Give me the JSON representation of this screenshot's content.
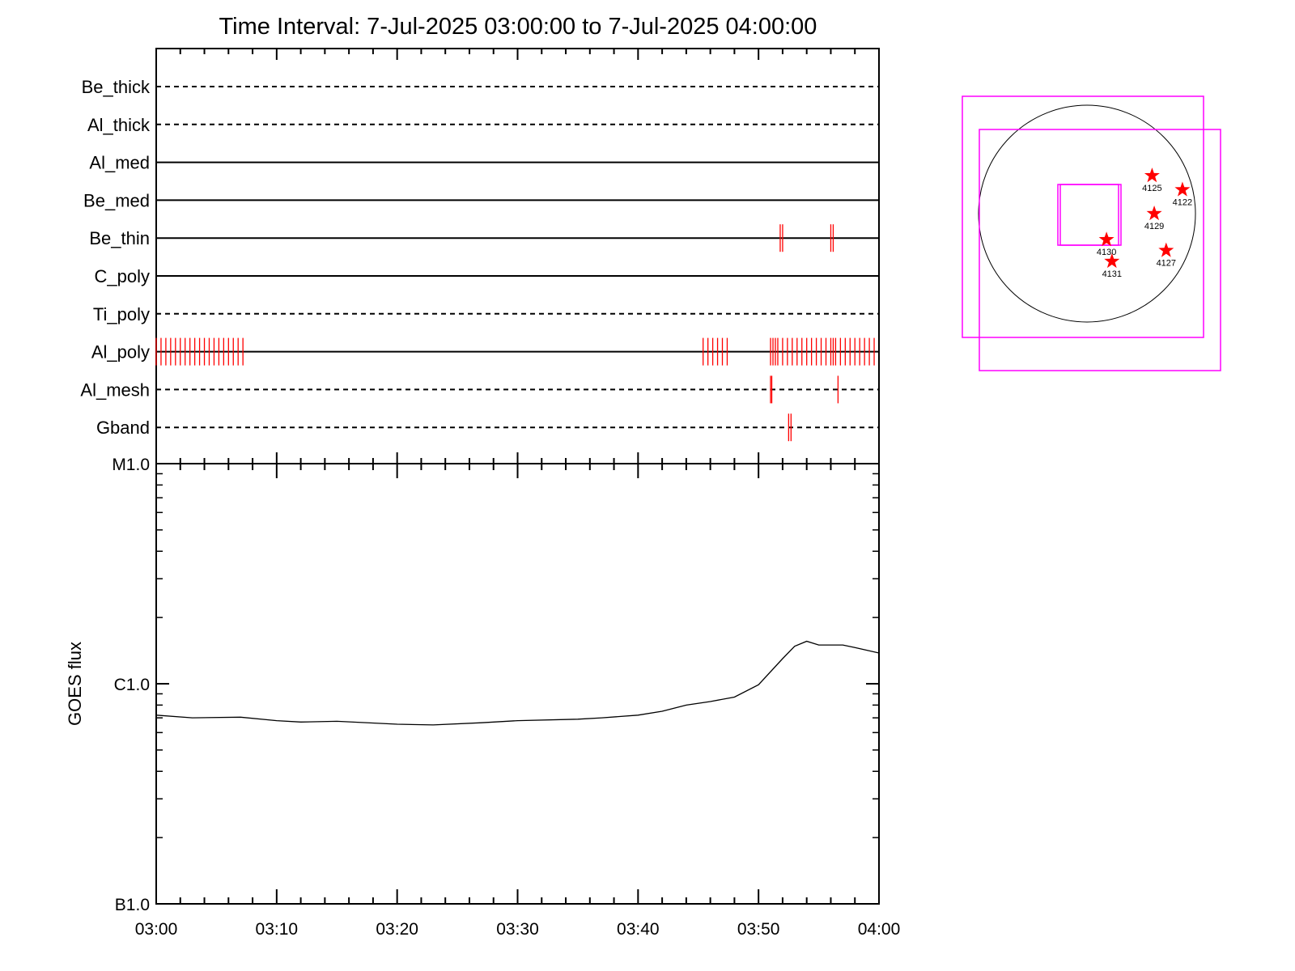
{
  "title": "Time Interval:  7-Jul-2025 03:00:00 to  7-Jul-2025 04:00:00",
  "colors": {
    "event": "#ff0000",
    "fov": "#ff00ff",
    "axes": "#000000",
    "star": "#ff0000"
  },
  "chart_data": [
    {
      "type": "event-timeline",
      "x_range": [
        "03:00",
        "04:00"
      ],
      "filters": [
        {
          "name": "Be_thick",
          "line": "dashed",
          "events_min": []
        },
        {
          "name": "Al_thick",
          "line": "dashed",
          "events_min": []
        },
        {
          "name": "Al_med",
          "line": "solid",
          "events_min": []
        },
        {
          "name": "Be_med",
          "line": "solid",
          "events_min": []
        },
        {
          "name": "Be_thin",
          "line": "solid",
          "events_min": [
            51.8,
            52.0,
            56.0,
            56.2
          ]
        },
        {
          "name": "C_poly",
          "line": "solid",
          "events_min": []
        },
        {
          "name": "Ti_poly",
          "line": "dashed",
          "events_min": []
        },
        {
          "name": "Al_poly",
          "line": "solid",
          "events_min": [
            0.0,
            0.4,
            0.8,
            1.2,
            1.6,
            2.0,
            2.4,
            2.8,
            3.2,
            3.6,
            4.0,
            4.4,
            4.8,
            5.2,
            5.6,
            6.0,
            6.4,
            6.8,
            7.2,
            45.4,
            45.8,
            46.2,
            46.6,
            47.0,
            47.4,
            51.0,
            51.2,
            51.4,
            51.6,
            52.0,
            52.4,
            52.8,
            53.2,
            53.6,
            54.0,
            54.4,
            54.8,
            55.2,
            55.6,
            56.0,
            56.2,
            56.4,
            56.8,
            57.2,
            57.6,
            58.0,
            58.4,
            58.8,
            59.2,
            59.6
          ]
        },
        {
          "name": "Al_mesh",
          "line": "dashed",
          "events_min": [
            51.0,
            51.1,
            56.6
          ]
        },
        {
          "name": "Gband",
          "line": "dashed",
          "events_min": [
            52.5,
            52.7
          ]
        }
      ]
    },
    {
      "type": "line",
      "ylabel": "GOES flux",
      "y_scale": "log",
      "y_ticks": [
        "B1.0",
        "C1.0",
        "M1.0"
      ],
      "ylim": [
        1e-07,
        1e-05
      ],
      "x_ticks": [
        "03:00",
        "03:10",
        "03:20",
        "03:30",
        "03:40",
        "03:50",
        "04:00"
      ],
      "xlim_min": [
        0,
        60
      ],
      "x_min": [
        0,
        3,
        7,
        10,
        12,
        15,
        20,
        23,
        27,
        30,
        35,
        37,
        40,
        42,
        44,
        46,
        48,
        50,
        52,
        53,
        54,
        55,
        56,
        57,
        58,
        60
      ],
      "y": [
        7.2e-07,
        7e-07,
        7.05e-07,
        6.8e-07,
        6.7e-07,
        6.75e-07,
        6.55e-07,
        6.5e-07,
        6.65e-07,
        6.8e-07,
        6.9e-07,
        7e-07,
        7.2e-07,
        7.5e-07,
        8e-07,
        8.3e-07,
        8.7e-07,
        9.9e-07,
        1.3e-06,
        1.48e-06,
        1.56e-06,
        1.5e-06,
        1.5e-06,
        1.5e-06,
        1.46e-06,
        1.38e-06
      ]
    },
    {
      "type": "scatter",
      "name": "solar disk active regions",
      "points": [
        {
          "label": "4125",
          "x": 0.6,
          "y": 0.35
        },
        {
          "label": "4122",
          "x": 0.88,
          "y": 0.22
        },
        {
          "label": "4129",
          "x": 0.62,
          "y": 0.0
        },
        {
          "label": "4130",
          "x": 0.18,
          "y": -0.24
        },
        {
          "label": "4131",
          "x": 0.23,
          "y": -0.44
        },
        {
          "label": "4127",
          "x": 0.73,
          "y": -0.34
        }
      ]
    }
  ]
}
